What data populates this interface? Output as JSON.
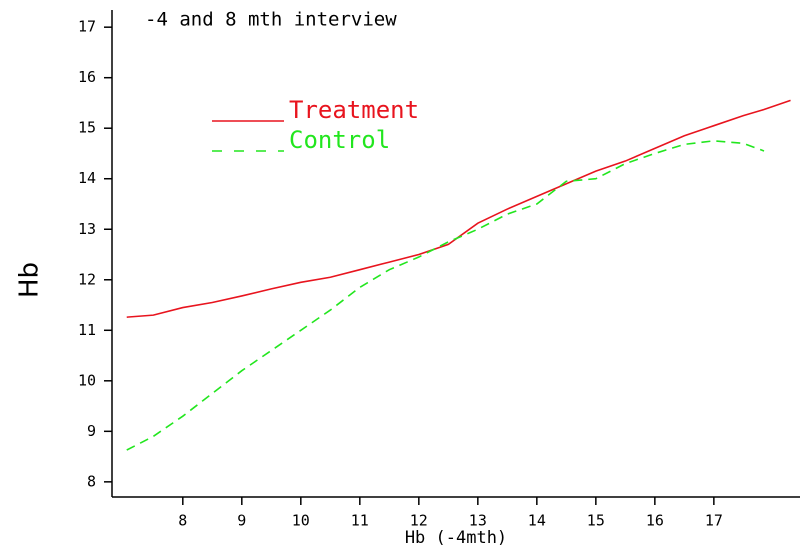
{
  "chart_data": {
    "type": "line",
    "title": "-4 and 8 mth interview",
    "x_label": "Hb (-4mth)",
    "y_label": "Hb",
    "x": [
      7.05,
      7.5,
      8,
      8.5,
      9,
      9.5,
      10,
      10.5,
      11,
      11.5,
      12,
      12.5,
      13,
      13.5,
      14,
      14.5,
      15,
      15.5,
      16,
      16.5,
      17,
      17.5,
      17.85,
      18.3
    ],
    "series": [
      {
        "name": "Treatment",
        "color": "#e8141e",
        "dash": false,
        "values": [
          11.26,
          11.3,
          11.45,
          11.55,
          11.68,
          11.82,
          11.95,
          12.05,
          12.2,
          12.35,
          12.5,
          12.7,
          13.12,
          13.4,
          13.65,
          13.9,
          14.15,
          14.35,
          14.6,
          14.85,
          15.05,
          15.25,
          15.37,
          15.55
        ]
      },
      {
        "name": "Control",
        "color": "#22e61e",
        "dash": true,
        "values": [
          8.63,
          8.9,
          9.3,
          9.75,
          10.2,
          10.6,
          11.0,
          11.4,
          11.85,
          12.2,
          12.45,
          12.75,
          13.0,
          13.3,
          13.5,
          13.95,
          14.0,
          14.3,
          14.5,
          14.68,
          14.75,
          14.7,
          14.55,
          null
        ]
      }
    ],
    "xlim": [
      6.8,
      18.46
    ],
    "ylim": [
      7.7,
      17.34
    ],
    "xticks": [
      8,
      9,
      10,
      11,
      12,
      13,
      14,
      15,
      16,
      17
    ],
    "yticks": [
      8,
      9,
      10,
      11,
      12,
      13,
      14,
      15,
      16,
      17
    ]
  }
}
